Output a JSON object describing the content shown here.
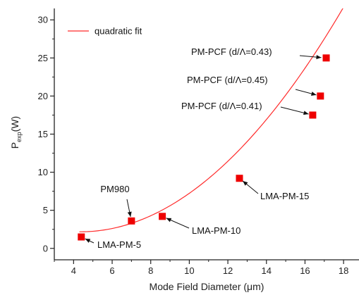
{
  "chart_data": {
    "type": "scatter",
    "xlabel": "Mode Field Diameter (μm)",
    "ylabel": {
      "main": "P",
      "sub": "exp",
      "unit": "(W)"
    },
    "xlim": [
      3,
      18.8
    ],
    "ylim": [
      -1.5,
      31.5
    ],
    "xticks": [
      4,
      6,
      8,
      10,
      12,
      14,
      16,
      18
    ],
    "yticks": [
      0,
      5,
      10,
      15,
      20,
      25,
      30
    ],
    "grid": false,
    "legend": {
      "position": "top-left",
      "entries": [
        {
          "label": "quadratic fit",
          "color": "#ff2b2b"
        }
      ]
    },
    "points": [
      {
        "x": 4.4,
        "y": 1.5
      },
      {
        "x": 7.0,
        "y": 3.6
      },
      {
        "x": 8.6,
        "y": 4.2
      },
      {
        "x": 12.6,
        "y": 9.2
      },
      {
        "x": 16.4,
        "y": 17.5
      },
      {
        "x": 16.8,
        "y": 20.0
      },
      {
        "x": 17.1,
        "y": 25.0
      }
    ],
    "fit": {
      "type": "quadratic",
      "a": 0.1583,
      "b": -1.3775,
      "c": 5.175,
      "x_range": [
        4.3,
        18.9
      ]
    },
    "annotations": [
      {
        "text": "LMA-PM-5",
        "point": 0
      },
      {
        "text": "PM980",
        "point": 1
      },
      {
        "text": "LMA-PM-10",
        "point": 2
      },
      {
        "text": "LMA-PM-15",
        "point": 3
      },
      {
        "text": "PM-PCF (d/Λ=0.41)",
        "point": 4
      },
      {
        "text": "PM-PCF (d/Λ=0.45)",
        "point": 5
      },
      {
        "text": "PM-PCF (d/Λ=0.43)",
        "point": 6
      }
    ],
    "colors": {
      "marker": "#ee0000",
      "fit": "#ff2b2b",
      "axis": "#222222"
    }
  }
}
